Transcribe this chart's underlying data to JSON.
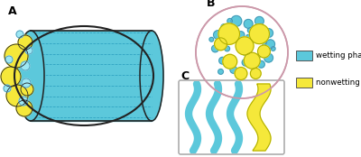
{
  "bg_color": "#ffffff",
  "cyan_color": "#5cc8db",
  "yellow_color": "#f5e83a",
  "outline_color": "#222222",
  "panel_A_label": "A",
  "panel_B_label": "B",
  "panel_C_label": "C",
  "legend_label1": "wetting phase",
  "legend_label2": "nonwetting phase",
  "yellow_circles_A": [
    [
      18,
      112,
      13
    ],
    [
      12,
      89,
      11
    ],
    [
      19,
      68,
      12
    ],
    [
      27,
      54,
      9
    ],
    [
      28,
      127,
      8
    ],
    [
      30,
      75,
      7
    ]
  ],
  "cyan_circles_A": [
    [
      28,
      101,
      5
    ],
    [
      29,
      82,
      5
    ],
    [
      26,
      62,
      5
    ],
    [
      10,
      108,
      4
    ],
    [
      32,
      118,
      4
    ],
    [
      8,
      76,
      4
    ],
    [
      22,
      136,
      4
    ]
  ],
  "yellow_circles_B": [
    [
      0.36,
      0.7,
      0.115
    ],
    [
      0.53,
      0.57,
      0.098
    ],
    [
      0.69,
      0.7,
      0.108
    ],
    [
      0.61,
      0.41,
      0.088
    ],
    [
      0.37,
      0.4,
      0.078
    ],
    [
      0.74,
      0.51,
      0.068
    ],
    [
      0.27,
      0.59,
      0.068
    ],
    [
      0.49,
      0.27,
      0.068
    ],
    [
      0.65,
      0.27,
      0.058
    ]
  ],
  "cyan_circles_B": [
    [
      0.44,
      0.84,
      0.058
    ],
    [
      0.57,
      0.81,
      0.048
    ],
    [
      0.69,
      0.84,
      0.048
    ],
    [
      0.79,
      0.71,
      0.048
    ],
    [
      0.81,
      0.59,
      0.048
    ],
    [
      0.79,
      0.44,
      0.048
    ],
    [
      0.71,
      0.37,
      0.038
    ],
    [
      0.54,
      0.39,
      0.038
    ],
    [
      0.41,
      0.31,
      0.038
    ],
    [
      0.29,
      0.41,
      0.038
    ],
    [
      0.21,
      0.54,
      0.038
    ],
    [
      0.24,
      0.69,
      0.048
    ],
    [
      0.31,
      0.77,
      0.038
    ],
    [
      0.49,
      0.69,
      0.038
    ],
    [
      0.64,
      0.64,
      0.028
    ],
    [
      0.47,
      0.54,
      0.028
    ],
    [
      0.34,
      0.54,
      0.028
    ],
    [
      0.59,
      0.74,
      0.028
    ],
    [
      0.37,
      0.84,
      0.028
    ],
    [
      0.54,
      0.49,
      0.028
    ],
    [
      0.74,
      0.61,
      0.028
    ],
    [
      0.27,
      0.29,
      0.028
    ],
    [
      0.57,
      0.67,
      0.023
    ],
    [
      0.41,
      0.67,
      0.023
    ],
    [
      0.34,
      0.64,
      0.023
    ],
    [
      0.69,
      0.47,
      0.023
    ],
    [
      0.84,
      0.54,
      0.023
    ],
    [
      0.17,
      0.64,
      0.023
    ],
    [
      0.71,
      0.79,
      0.023
    ]
  ]
}
